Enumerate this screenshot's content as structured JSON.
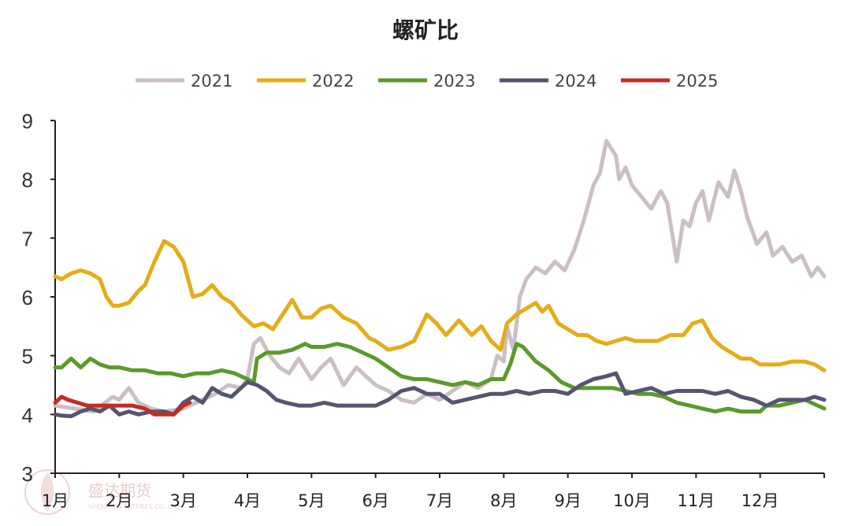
{
  "chart_data": {
    "type": "line",
    "title": "螺矿比",
    "xlabel": "",
    "ylabel": "",
    "ylim": [
      3,
      9
    ],
    "yticks": [
      3,
      4,
      5,
      6,
      7,
      8,
      9
    ],
    "x_labels": [
      "1月",
      "2月",
      "3月",
      "4月",
      "5月",
      "6月",
      "7月",
      "8月",
      "9月",
      "10月",
      "11月",
      "12月"
    ],
    "x_unit": "month (1.0 = start of Jan, 13.0 = end of Dec)",
    "xlim": [
      1,
      13
    ],
    "legend_position": "top",
    "grid": false,
    "series": [
      {
        "name": "2021",
        "color": "#cbbfc4",
        "x": [
          1.0,
          1.3,
          1.6,
          1.9,
          2.0,
          2.15,
          2.3,
          2.5,
          2.7,
          3.0,
          3.3,
          3.5,
          3.7,
          3.9,
          4.0,
          4.1,
          4.2,
          4.35,
          4.5,
          4.65,
          4.8,
          5.0,
          5.15,
          5.3,
          5.5,
          5.7,
          5.9,
          6.0,
          6.2,
          6.4,
          6.6,
          6.8,
          7.0,
          7.2,
          7.4,
          7.6,
          7.8,
          7.9,
          8.0,
          8.05,
          8.15,
          8.25,
          8.35,
          8.5,
          8.65,
          8.8,
          8.95,
          9.1,
          9.25,
          9.4,
          9.5,
          9.6,
          9.75,
          9.8,
          9.9,
          10.0,
          10.15,
          10.3,
          10.45,
          10.55,
          10.7,
          10.8,
          10.9,
          11.0,
          11.1,
          11.2,
          11.35,
          11.5,
          11.6,
          11.7,
          11.8,
          11.95,
          12.1,
          12.2,
          12.35,
          12.5,
          12.65,
          12.8,
          12.9,
          13.0
        ],
        "y": [
          4.15,
          4.1,
          4.05,
          4.3,
          4.25,
          4.45,
          4.2,
          4.1,
          4.05,
          4.1,
          4.25,
          4.35,
          4.5,
          4.45,
          4.6,
          5.2,
          5.3,
          5.0,
          4.8,
          4.7,
          4.95,
          4.6,
          4.8,
          4.95,
          4.5,
          4.8,
          4.6,
          4.5,
          4.4,
          4.25,
          4.2,
          4.35,
          4.25,
          4.4,
          4.55,
          4.45,
          4.6,
          5.0,
          4.9,
          5.5,
          5.1,
          6.0,
          6.3,
          6.5,
          6.4,
          6.6,
          6.45,
          6.8,
          7.3,
          7.9,
          8.1,
          8.65,
          8.4,
          8.0,
          8.2,
          7.9,
          7.7,
          7.5,
          7.8,
          7.6,
          6.6,
          7.3,
          7.2,
          7.6,
          7.8,
          7.3,
          7.95,
          7.7,
          8.15,
          7.8,
          7.35,
          6.9,
          7.1,
          6.7,
          6.85,
          6.6,
          6.7,
          6.35,
          6.5,
          6.35
        ]
      },
      {
        "name": "2022",
        "color": "#e5ac16",
        "x": [
          1.0,
          1.1,
          1.25,
          1.4,
          1.55,
          1.7,
          1.8,
          1.9,
          2.0,
          2.15,
          2.3,
          2.4,
          2.55,
          2.7,
          2.85,
          3.0,
          3.15,
          3.3,
          3.45,
          3.6,
          3.75,
          3.9,
          4.0,
          4.1,
          4.25,
          4.4,
          4.55,
          4.7,
          4.85,
          5.0,
          5.15,
          5.3,
          5.5,
          5.7,
          5.9,
          6.0,
          6.2,
          6.4,
          6.6,
          6.8,
          6.95,
          7.1,
          7.3,
          7.5,
          7.65,
          7.8,
          7.95,
          8.05,
          8.2,
          8.35,
          8.5,
          8.6,
          8.7,
          8.85,
          9.0,
          9.15,
          9.3,
          9.45,
          9.6,
          9.75,
          9.9,
          10.05,
          10.2,
          10.4,
          10.6,
          10.8,
          10.95,
          11.1,
          11.25,
          11.4,
          11.55,
          11.7,
          11.85,
          12.0,
          12.15,
          12.3,
          12.5,
          12.7,
          12.85,
          13.0
        ],
        "y": [
          6.35,
          6.3,
          6.4,
          6.45,
          6.4,
          6.3,
          6.0,
          5.85,
          5.85,
          5.9,
          6.1,
          6.2,
          6.6,
          6.95,
          6.85,
          6.6,
          6.0,
          6.05,
          6.2,
          6.0,
          5.9,
          5.7,
          5.6,
          5.5,
          5.55,
          5.45,
          5.7,
          5.95,
          5.65,
          5.65,
          5.8,
          5.85,
          5.65,
          5.55,
          5.3,
          5.25,
          5.1,
          5.15,
          5.25,
          5.7,
          5.55,
          5.35,
          5.6,
          5.35,
          5.5,
          5.25,
          5.1,
          5.55,
          5.7,
          5.8,
          5.9,
          5.75,
          5.85,
          5.55,
          5.45,
          5.35,
          5.35,
          5.25,
          5.2,
          5.25,
          5.3,
          5.25,
          5.25,
          5.25,
          5.35,
          5.35,
          5.55,
          5.6,
          5.3,
          5.15,
          5.05,
          4.95,
          4.95,
          4.85,
          4.85,
          4.85,
          4.9,
          4.9,
          4.85,
          4.75
        ]
      },
      {
        "name": "2023",
        "color": "#5a9a2b",
        "x": [
          1.0,
          1.1,
          1.25,
          1.4,
          1.55,
          1.7,
          1.85,
          2.0,
          2.2,
          2.4,
          2.6,
          2.8,
          3.0,
          3.2,
          3.4,
          3.6,
          3.8,
          4.0,
          4.1,
          4.15,
          4.3,
          4.5,
          4.7,
          4.9,
          5.0,
          5.2,
          5.4,
          5.6,
          5.8,
          6.0,
          6.2,
          6.4,
          6.6,
          6.8,
          7.0,
          7.2,
          7.4,
          7.6,
          7.8,
          8.0,
          8.1,
          8.2,
          8.3,
          8.5,
          8.7,
          8.9,
          9.1,
          9.3,
          9.5,
          9.7,
          9.9,
          10.1,
          10.3,
          10.5,
          10.7,
          10.9,
          11.1,
          11.3,
          11.5,
          11.7,
          11.9,
          12.0,
          12.1,
          12.3,
          12.5,
          12.7,
          12.9,
          13.0
        ],
        "y": [
          4.8,
          4.8,
          4.95,
          4.8,
          4.95,
          4.85,
          4.8,
          4.8,
          4.75,
          4.75,
          4.7,
          4.7,
          4.65,
          4.7,
          4.7,
          4.75,
          4.7,
          4.6,
          4.55,
          4.95,
          5.05,
          5.05,
          5.1,
          5.2,
          5.15,
          5.15,
          5.2,
          5.15,
          5.05,
          4.95,
          4.8,
          4.65,
          4.6,
          4.6,
          4.55,
          4.5,
          4.55,
          4.5,
          4.6,
          4.6,
          4.85,
          5.2,
          5.15,
          4.9,
          4.75,
          4.55,
          4.45,
          4.45,
          4.45,
          4.45,
          4.4,
          4.35,
          4.35,
          4.3,
          4.2,
          4.15,
          4.1,
          4.05,
          4.1,
          4.05,
          4.05,
          4.05,
          4.15,
          4.15,
          4.2,
          4.25,
          4.15,
          4.1
        ]
      },
      {
        "name": "2024",
        "color": "#565570",
        "x": [
          1.0,
          1.1,
          1.25,
          1.4,
          1.55,
          1.7,
          1.85,
          2.0,
          2.15,
          2.3,
          2.5,
          2.7,
          2.85,
          3.0,
          3.15,
          3.3,
          3.45,
          3.6,
          3.75,
          3.9,
          4.0,
          4.15,
          4.3,
          4.45,
          4.6,
          4.8,
          5.0,
          5.2,
          5.4,
          5.6,
          5.8,
          6.0,
          6.2,
          6.4,
          6.6,
          6.8,
          7.0,
          7.2,
          7.4,
          7.6,
          7.8,
          8.0,
          8.2,
          8.4,
          8.6,
          8.8,
          9.0,
          9.2,
          9.4,
          9.6,
          9.75,
          9.9,
          10.1,
          10.3,
          10.5,
          10.7,
          10.9,
          11.1,
          11.3,
          11.5,
          11.7,
          11.9,
          12.1,
          12.3,
          12.5,
          12.7,
          12.85,
          13.0
        ],
        "y": [
          4.0,
          3.98,
          3.97,
          4.05,
          4.1,
          4.05,
          4.15,
          4.0,
          4.05,
          4.0,
          4.05,
          4.05,
          4.0,
          4.2,
          4.3,
          4.2,
          4.45,
          4.35,
          4.3,
          4.45,
          4.55,
          4.5,
          4.4,
          4.25,
          4.2,
          4.15,
          4.15,
          4.2,
          4.15,
          4.15,
          4.15,
          4.15,
          4.25,
          4.4,
          4.45,
          4.35,
          4.35,
          4.2,
          4.25,
          4.3,
          4.35,
          4.35,
          4.4,
          4.35,
          4.4,
          4.4,
          4.35,
          4.5,
          4.6,
          4.65,
          4.7,
          4.35,
          4.4,
          4.45,
          4.35,
          4.4,
          4.4,
          4.4,
          4.35,
          4.4,
          4.3,
          4.25,
          4.15,
          4.25,
          4.25,
          4.25,
          4.3,
          4.25
        ]
      },
      {
        "name": "2025",
        "color": "#c62b22",
        "x": [
          1.0,
          1.1,
          1.2,
          1.35,
          1.5,
          1.7,
          1.9,
          2.05,
          2.2,
          2.4,
          2.55,
          2.7,
          2.85,
          3.0,
          3.1
        ],
        "y": [
          4.2,
          4.3,
          4.25,
          4.2,
          4.15,
          4.15,
          4.15,
          4.15,
          4.15,
          4.1,
          4.0,
          4.0,
          4.0,
          4.15,
          4.2
        ]
      }
    ]
  },
  "watermark": {
    "text": "盛达期货",
    "small_text": "SHENG DA FUTURES CO.,LTD"
  }
}
